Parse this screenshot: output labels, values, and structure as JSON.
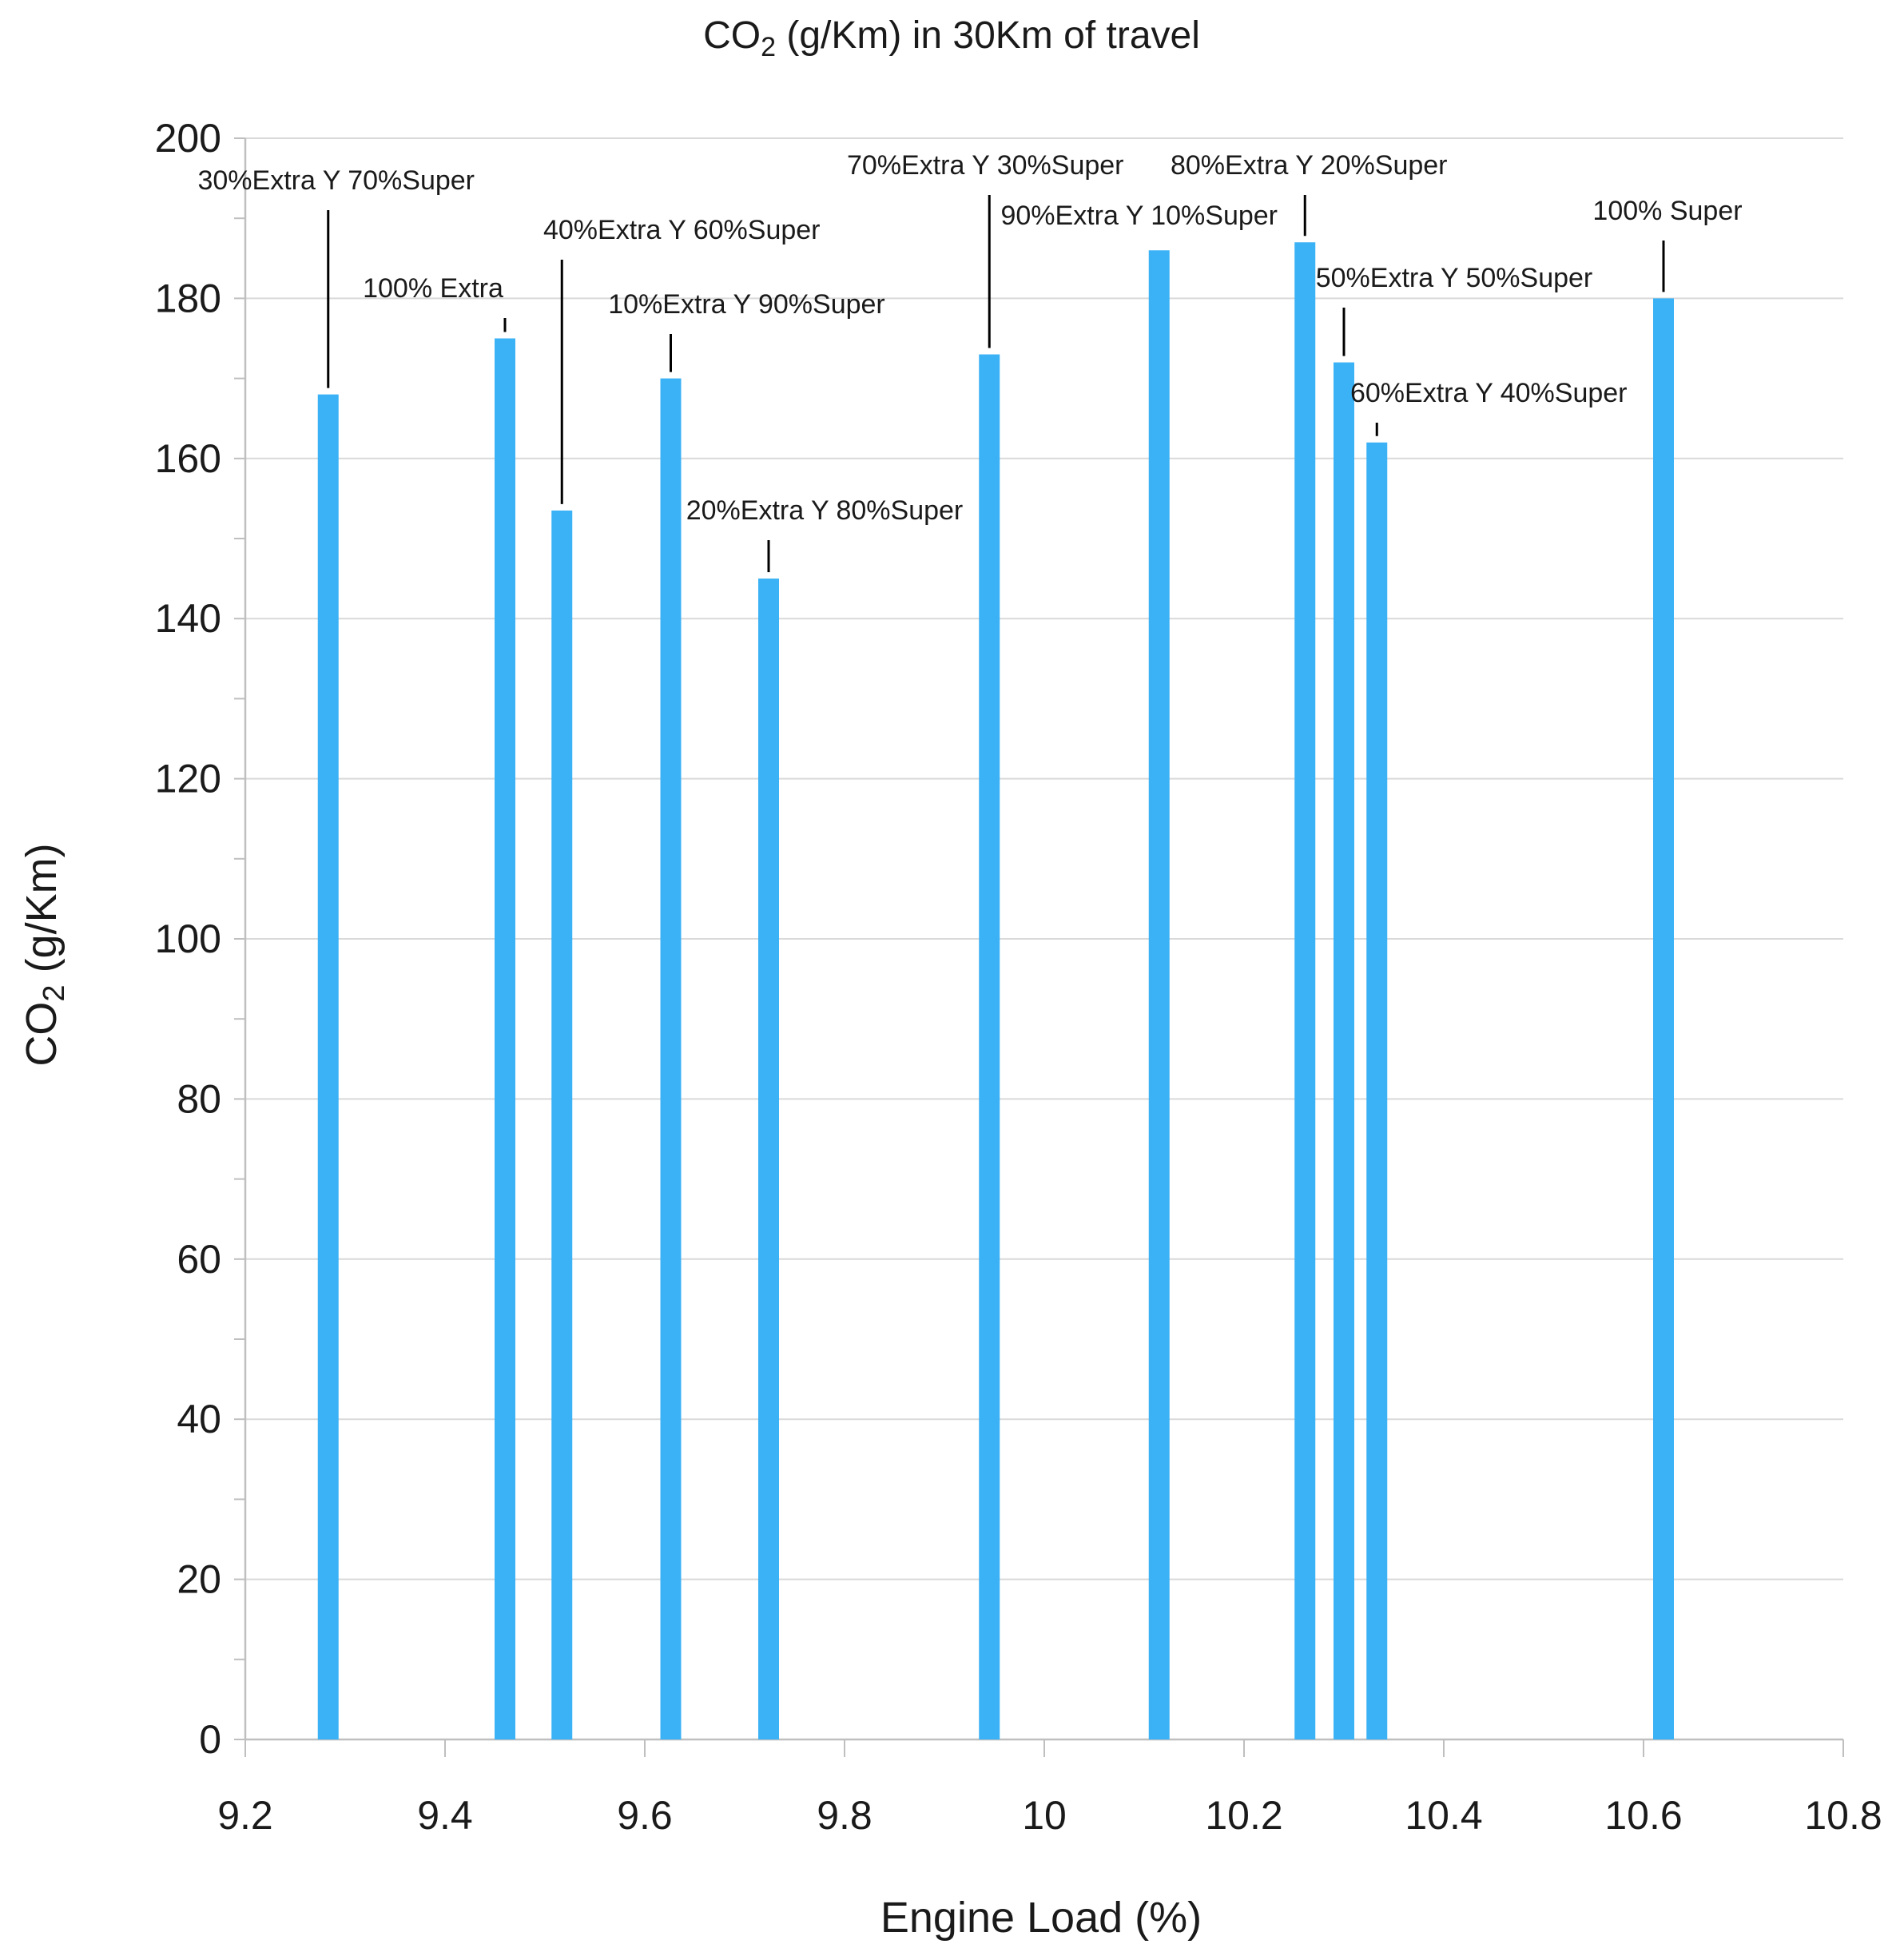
{
  "chart_data": {
    "type": "bar",
    "title_prefix": "CO",
    "title_sub": "2",
    "title_suffix": " (g/Km) in 30Km of travel",
    "xlabel": "Engine Load (%)",
    "ylabel_prefix": "CO",
    "ylabel_sub": "2",
    "ylabel_suffix": " (g/Km)",
    "xlim": [
      9.2,
      10.8
    ],
    "ylim": [
      0,
      200
    ],
    "x_ticks": [
      "9.2",
      "9.4",
      "9.6",
      "9.8",
      "10",
      "10.2",
      "10.4",
      "10.6",
      "10.8"
    ],
    "y_ticks": [
      "0",
      "20",
      "40",
      "60",
      "80",
      "100",
      "120",
      "140",
      "160",
      "180",
      "200"
    ],
    "grid": true,
    "bar_color": "#3bb2f5",
    "points": [
      {
        "label": "30%Extra Y 70%Super",
        "x": 9.283,
        "y": 168
      },
      {
        "label": "100% Extra",
        "x": 9.46,
        "y": 175
      },
      {
        "label": "40%Extra Y 60%Super",
        "x": 9.517,
        "y": 153.5
      },
      {
        "label": "10%Extra Y 90%Super",
        "x": 9.626,
        "y": 170
      },
      {
        "label": "20%Extra Y 80%Super",
        "x": 9.724,
        "y": 145
      },
      {
        "label": "70%Extra Y 30%Super",
        "x": 9.945,
        "y": 173
      },
      {
        "label": "90%Extra Y 10%Super",
        "x": 10.115,
        "y": 186
      },
      {
        "label": "80%Extra Y 20%Super",
        "x": 10.261,
        "y": 187
      },
      {
        "label": "50%Extra Y 50%Super",
        "x": 10.3,
        "y": 172
      },
      {
        "label": "60%Extra Y 40%Super",
        "x": 10.333,
        "y": 162
      },
      {
        "label": "100% Super",
        "x": 10.62,
        "y": 180
      }
    ]
  }
}
